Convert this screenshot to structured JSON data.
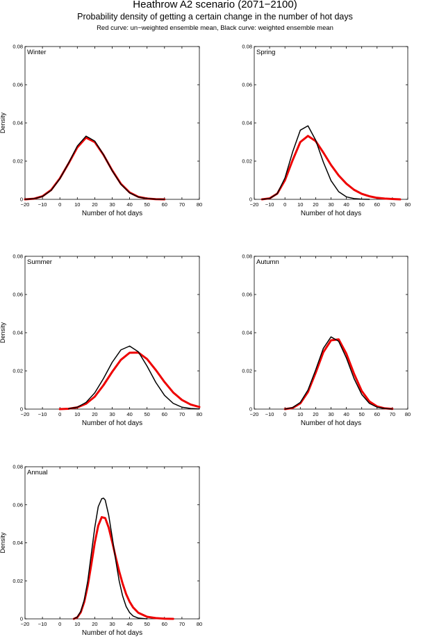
{
  "header": {
    "title": "Heathrow A2 scenario (2071−2100)",
    "subtitle": "Probability density of getting a certain change in the number of hot days",
    "legend_note": "Red curve: un−weighted ensemble mean, Black curve: weighted ensemble mean"
  },
  "colors": {
    "weighted": "#000000",
    "unweighted": "#ee0000",
    "axes": "#000000",
    "background": "#ffffff"
  },
  "chart_data": [
    {
      "type": "line",
      "panel_label": "Winter",
      "xlabel": "Number of hot days",
      "ylabel": "Density",
      "xlim": [
        -20,
        80
      ],
      "ylim": [
        0,
        0.08
      ],
      "xticks": [
        -20,
        -10,
        0,
        10,
        20,
        30,
        40,
        50,
        60,
        70,
        80
      ],
      "xtick_labels": [
        "−20",
        "−10",
        "0",
        "10",
        "20",
        "30",
        "40",
        "50",
        "60",
        "70",
        "80"
      ],
      "yticks": [
        0,
        0.02,
        0.04,
        0.06,
        0.08
      ],
      "ytick_labels": [
        "0",
        "0.02",
        "0.04",
        "0.06",
        "0.08"
      ],
      "series": [
        {
          "name": "Weighted ensemble mean",
          "color": "black",
          "x": [
            -20,
            -15,
            -10,
            -5,
            0,
            5,
            10,
            15,
            20,
            25,
            30,
            35,
            40,
            45,
            50,
            55,
            60
          ],
          "y": [
            0.0,
            0.0003,
            0.0015,
            0.0047,
            0.0108,
            0.019,
            0.0279,
            0.0331,
            0.0305,
            0.0234,
            0.015,
            0.0079,
            0.0034,
            0.0012,
            0.0004,
            0.0001,
            0.0
          ]
        },
        {
          "name": "Un-weighted ensemble mean",
          "color": "red",
          "x": [
            -20,
            -15,
            -10,
            -5,
            0,
            5,
            10,
            15,
            20,
            25,
            30,
            35,
            40,
            45,
            50,
            55,
            60
          ],
          "y": [
            0.0,
            0.0003,
            0.0016,
            0.0049,
            0.011,
            0.0188,
            0.0272,
            0.0323,
            0.03,
            0.0233,
            0.0152,
            0.0081,
            0.0036,
            0.0013,
            0.0004,
            0.0001,
            0.0
          ]
        }
      ]
    },
    {
      "type": "line",
      "panel_label": "Spring",
      "xlabel": "Number of hot days",
      "ylabel": "",
      "xlim": [
        -20,
        80
      ],
      "ylim": [
        0,
        0.08
      ],
      "xticks": [
        -20,
        -10,
        0,
        10,
        20,
        30,
        40,
        50,
        60,
        70,
        80
      ],
      "xtick_labels": [
        "−20",
        "−10",
        "0",
        "10",
        "20",
        "30",
        "40",
        "50",
        "60",
        "70",
        "80"
      ],
      "yticks": [
        0,
        0.02,
        0.04,
        0.06,
        0.08
      ],
      "ytick_labels": [
        "0",
        "0.02",
        "0.04",
        "0.06",
        "0.08"
      ],
      "series": [
        {
          "name": "Weighted ensemble mean",
          "color": "black",
          "x": [
            -15,
            -10,
            -5,
            0,
            5,
            10,
            15,
            20,
            25,
            30,
            35,
            40,
            45,
            50,
            55
          ],
          "y": [
            0.0,
            0.0004,
            0.003,
            0.0112,
            0.0248,
            0.0362,
            0.0385,
            0.031,
            0.0195,
            0.0098,
            0.004,
            0.0013,
            0.0004,
            0.0001,
            0.0
          ]
        },
        {
          "name": "Un-weighted ensemble mean",
          "color": "red",
          "x": [
            -15,
            -10,
            -5,
            0,
            5,
            10,
            15,
            20,
            25,
            30,
            35,
            40,
            45,
            50,
            55,
            60,
            65,
            70,
            75
          ],
          "y": [
            0.0,
            0.0005,
            0.003,
            0.01,
            0.0205,
            0.03,
            0.0332,
            0.0305,
            0.0245,
            0.018,
            0.0125,
            0.0082,
            0.005,
            0.0029,
            0.0016,
            0.0008,
            0.0004,
            0.0002,
            0.0
          ]
        }
      ]
    },
    {
      "type": "line",
      "panel_label": "Summer",
      "xlabel": "Number of hot days",
      "ylabel": "Density",
      "xlim": [
        -20,
        80
      ],
      "ylim": [
        0,
        0.08
      ],
      "xticks": [
        -20,
        -10,
        0,
        10,
        20,
        30,
        40,
        50,
        60,
        70,
        80
      ],
      "xtick_labels": [
        "−20",
        "−10",
        "0",
        "10",
        "20",
        "30",
        "40",
        "50",
        "60",
        "70",
        "80"
      ],
      "yticks": [
        0,
        0.02,
        0.04,
        0.06,
        0.08
      ],
      "ytick_labels": [
        "0",
        "0.02",
        "0.04",
        "0.06",
        "0.08"
      ],
      "series": [
        {
          "name": "Weighted ensemble mean",
          "color": "black",
          "x": [
            5,
            10,
            15,
            20,
            25,
            30,
            35,
            40,
            45,
            50,
            55,
            60,
            65,
            70,
            75,
            80
          ],
          "y": [
            0.0002,
            0.001,
            0.0035,
            0.0085,
            0.016,
            0.0245,
            0.031,
            0.033,
            0.03,
            0.0225,
            0.014,
            0.0072,
            0.003,
            0.001,
            0.0003,
            0.0001
          ]
        },
        {
          "name": "Un-weighted ensemble mean",
          "color": "red",
          "x": [
            0,
            5,
            10,
            15,
            20,
            25,
            30,
            35,
            40,
            45,
            50,
            55,
            60,
            65,
            70,
            75,
            80
          ],
          "y": [
            0.0,
            0.0002,
            0.0009,
            0.0028,
            0.0065,
            0.0125,
            0.0195,
            0.0258,
            0.0295,
            0.0296,
            0.0262,
            0.0205,
            0.0142,
            0.0087,
            0.0048,
            0.0024,
            0.0011
          ]
        }
      ]
    },
    {
      "type": "line",
      "panel_label": "Autumn",
      "xlabel": "Number of hot days",
      "ylabel": "",
      "xlim": [
        -20,
        80
      ],
      "ylim": [
        0,
        0.08
      ],
      "xticks": [
        -20,
        -10,
        0,
        10,
        20,
        30,
        40,
        50,
        60,
        70,
        80
      ],
      "xtick_labels": [
        "−20",
        "−10",
        "0",
        "10",
        "20",
        "30",
        "40",
        "50",
        "60",
        "70",
        "80"
      ],
      "yticks": [
        0,
        0.02,
        0.04,
        0.06,
        0.08
      ],
      "ytick_labels": [
        "0",
        "0.02",
        "0.04",
        "0.06",
        "0.08"
      ],
      "series": [
        {
          "name": "Weighted ensemble mean",
          "color": "black",
          "x": [
            0,
            5,
            10,
            15,
            20,
            25,
            30,
            35,
            40,
            45,
            50,
            55,
            60,
            65,
            70
          ],
          "y": [
            0.0,
            0.0008,
            0.0035,
            0.01,
            0.0205,
            0.0318,
            0.0378,
            0.0355,
            0.0268,
            0.016,
            0.0077,
            0.003,
            0.001,
            0.0003,
            0.0
          ]
        },
        {
          "name": "Un-weighted ensemble mean",
          "color": "red",
          "x": [
            0,
            5,
            10,
            15,
            20,
            25,
            30,
            35,
            40,
            45,
            50,
            55,
            60,
            65,
            70
          ],
          "y": [
            0.0,
            0.0006,
            0.003,
            0.009,
            0.019,
            0.0298,
            0.036,
            0.0365,
            0.029,
            0.0185,
            0.0095,
            0.004,
            0.0014,
            0.0004,
            0.0001
          ]
        }
      ]
    },
    {
      "type": "line",
      "panel_label": "Annual",
      "xlabel": "Number of hot days",
      "ylabel": "Density",
      "xlim": [
        -20,
        80
      ],
      "ylim": [
        0,
        0.08
      ],
      "xticks": [
        -20,
        -10,
        0,
        10,
        20,
        30,
        40,
        50,
        60,
        70,
        80
      ],
      "xtick_labels": [
        "−20",
        "−10",
        "0",
        "10",
        "20",
        "30",
        "40",
        "50",
        "60",
        "70",
        "80"
      ],
      "yticks": [
        0,
        0.02,
        0.04,
        0.06,
        0.08
      ],
      "ytick_labels": [
        "0",
        "0.02",
        "0.04",
        "0.06",
        "0.08"
      ],
      "series": [
        {
          "name": "Weighted ensemble mean",
          "color": "black",
          "x": [
            8,
            10,
            12,
            14,
            16,
            18,
            20,
            22,
            24,
            25,
            26,
            28,
            30,
            32,
            34,
            36,
            38,
            40,
            42,
            45,
            50
          ],
          "y": [
            0.0,
            0.001,
            0.004,
            0.01,
            0.02,
            0.034,
            0.048,
            0.059,
            0.0632,
            0.0635,
            0.0625,
            0.0545,
            0.043,
            0.031,
            0.02,
            0.012,
            0.0065,
            0.0033,
            0.0015,
            0.0004,
            0.0
          ]
        },
        {
          "name": "Un-weighted ensemble mean",
          "color": "red",
          "x": [
            8,
            10,
            12,
            14,
            16,
            18,
            20,
            22,
            24,
            26,
            28,
            30,
            32,
            34,
            36,
            38,
            40,
            42,
            45,
            50,
            55,
            60,
            65
          ],
          "y": [
            0.0,
            0.0008,
            0.0035,
            0.009,
            0.0175,
            0.0285,
            0.04,
            0.049,
            0.0535,
            0.053,
            0.048,
            0.0405,
            0.0325,
            0.025,
            0.0185,
            0.013,
            0.009,
            0.006,
            0.0032,
            0.0011,
            0.0004,
            0.0001,
            0.0
          ]
        }
      ]
    }
  ]
}
